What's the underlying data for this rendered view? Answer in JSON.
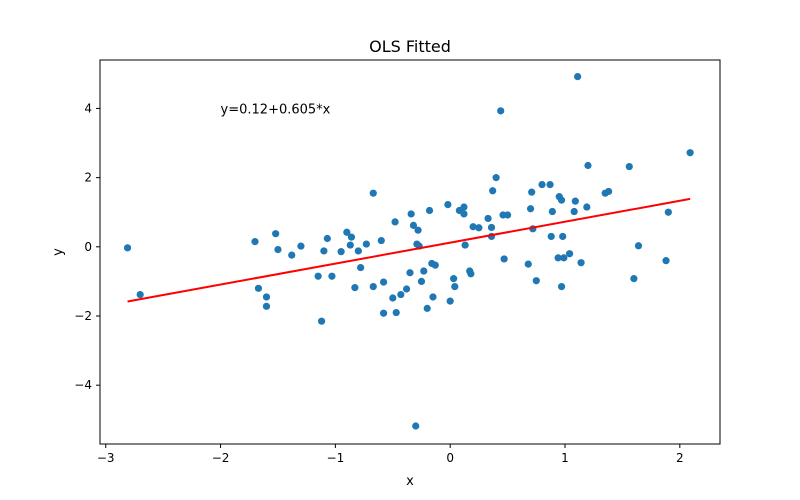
{
  "chart_data": {
    "type": "scatter",
    "title": "OLS Fitted",
    "xlabel": "x",
    "ylabel": "y",
    "annotation": "y=0.12+0.605*x",
    "annotation_pos": [
      -2.0,
      4.0
    ],
    "xlim": [
      -3.05,
      2.35
    ],
    "ylim": [
      -5.7,
      5.4
    ],
    "xticks": [
      -3,
      -2,
      -1,
      0,
      1,
      2
    ],
    "yticks": [
      -4,
      -2,
      0,
      2,
      4
    ],
    "xtick_labels": [
      "−3",
      "−2",
      "−1",
      "0",
      "1",
      "2"
    ],
    "ytick_labels": [
      "−4",
      "−2",
      "0",
      "2",
      "4"
    ],
    "grid": false,
    "colors": {
      "points": "#1f77b4",
      "fit_line": "#ff0000"
    },
    "fit": {
      "intercept": 0.12,
      "slope": 0.605,
      "x_min": -2.81,
      "x_max": 2.09
    },
    "points": [
      [
        -2.81,
        -0.03
      ],
      [
        -2.7,
        -1.38
      ],
      [
        -1.7,
        0.15
      ],
      [
        -1.67,
        -1.2
      ],
      [
        -1.6,
        -1.45
      ],
      [
        -1.6,
        -1.72
      ],
      [
        -1.52,
        0.38
      ],
      [
        -1.5,
        -0.08
      ],
      [
        -1.38,
        -0.24
      ],
      [
        -1.3,
        0.02
      ],
      [
        -1.15,
        -0.85
      ],
      [
        -1.12,
        -2.15
      ],
      [
        -1.1,
        -0.12
      ],
      [
        -1.07,
        0.24
      ],
      [
        -1.03,
        -0.85
      ],
      [
        -0.95,
        -0.14
      ],
      [
        -0.9,
        0.42
      ],
      [
        -0.87,
        0.05
      ],
      [
        -0.86,
        0.28
      ],
      [
        -0.83,
        -1.18
      ],
      [
        -0.8,
        -0.12
      ],
      [
        -0.78,
        -0.6
      ],
      [
        -0.73,
        0.08
      ],
      [
        -0.67,
        1.55
      ],
      [
        -0.67,
        -1.15
      ],
      [
        -0.6,
        0.18
      ],
      [
        -0.58,
        -1.02
      ],
      [
        -0.58,
        -1.92
      ],
      [
        -0.5,
        -1.48
      ],
      [
        -0.48,
        0.72
      ],
      [
        -0.47,
        -1.9
      ],
      [
        -0.43,
        -1.38
      ],
      [
        -0.38,
        -1.22
      ],
      [
        -0.35,
        -0.75
      ],
      [
        -0.34,
        0.95
      ],
      [
        -0.32,
        0.62
      ],
      [
        -0.3,
        -5.18
      ],
      [
        -0.29,
        0.08
      ],
      [
        -0.28,
        0.48
      ],
      [
        -0.27,
        0.02
      ],
      [
        -0.25,
        -1.0
      ],
      [
        -0.23,
        -0.7
      ],
      [
        -0.2,
        -1.78
      ],
      [
        -0.18,
        1.05
      ],
      [
        -0.16,
        -0.48
      ],
      [
        -0.15,
        -1.45
      ],
      [
        -0.13,
        -0.53
      ],
      [
        -0.02,
        1.22
      ],
      [
        0.0,
        -1.57
      ],
      [
        0.03,
        -0.92
      ],
      [
        0.04,
        -1.15
      ],
      [
        0.08,
        1.05
      ],
      [
        0.12,
        1.15
      ],
      [
        0.12,
        0.95
      ],
      [
        0.13,
        0.05
      ],
      [
        0.17,
        -0.7
      ],
      [
        0.18,
        -0.78
      ],
      [
        0.2,
        0.58
      ],
      [
        0.25,
        0.55
      ],
      [
        0.33,
        0.82
      ],
      [
        0.36,
        0.56
      ],
      [
        0.36,
        0.3
      ],
      [
        0.37,
        1.62
      ],
      [
        0.4,
        2.0
      ],
      [
        0.44,
        3.93
      ],
      [
        0.46,
        0.92
      ],
      [
        0.47,
        -0.35
      ],
      [
        0.5,
        0.92
      ],
      [
        0.68,
        -0.5
      ],
      [
        0.7,
        1.1
      ],
      [
        0.71,
        1.58
      ],
      [
        0.72,
        0.52
      ],
      [
        0.75,
        -0.98
      ],
      [
        0.8,
        1.8
      ],
      [
        0.87,
        1.8
      ],
      [
        0.88,
        0.3
      ],
      [
        0.89,
        1.02
      ],
      [
        0.94,
        -0.32
      ],
      [
        0.95,
        1.45
      ],
      [
        0.97,
        1.35
      ],
      [
        0.97,
        -1.15
      ],
      [
        0.98,
        0.3
      ],
      [
        0.99,
        -0.32
      ],
      [
        1.04,
        -0.2
      ],
      [
        1.08,
        1.02
      ],
      [
        1.09,
        1.32
      ],
      [
        1.11,
        4.92
      ],
      [
        1.14,
        -0.46
      ],
      [
        1.19,
        1.15
      ],
      [
        1.2,
        2.35
      ],
      [
        1.35,
        1.55
      ],
      [
        1.38,
        1.6
      ],
      [
        1.56,
        2.32
      ],
      [
        1.6,
        -0.92
      ],
      [
        1.64,
        0.03
      ],
      [
        1.88,
        -0.4
      ],
      [
        1.9,
        1.0
      ],
      [
        2.09,
        2.72
      ]
    ]
  }
}
